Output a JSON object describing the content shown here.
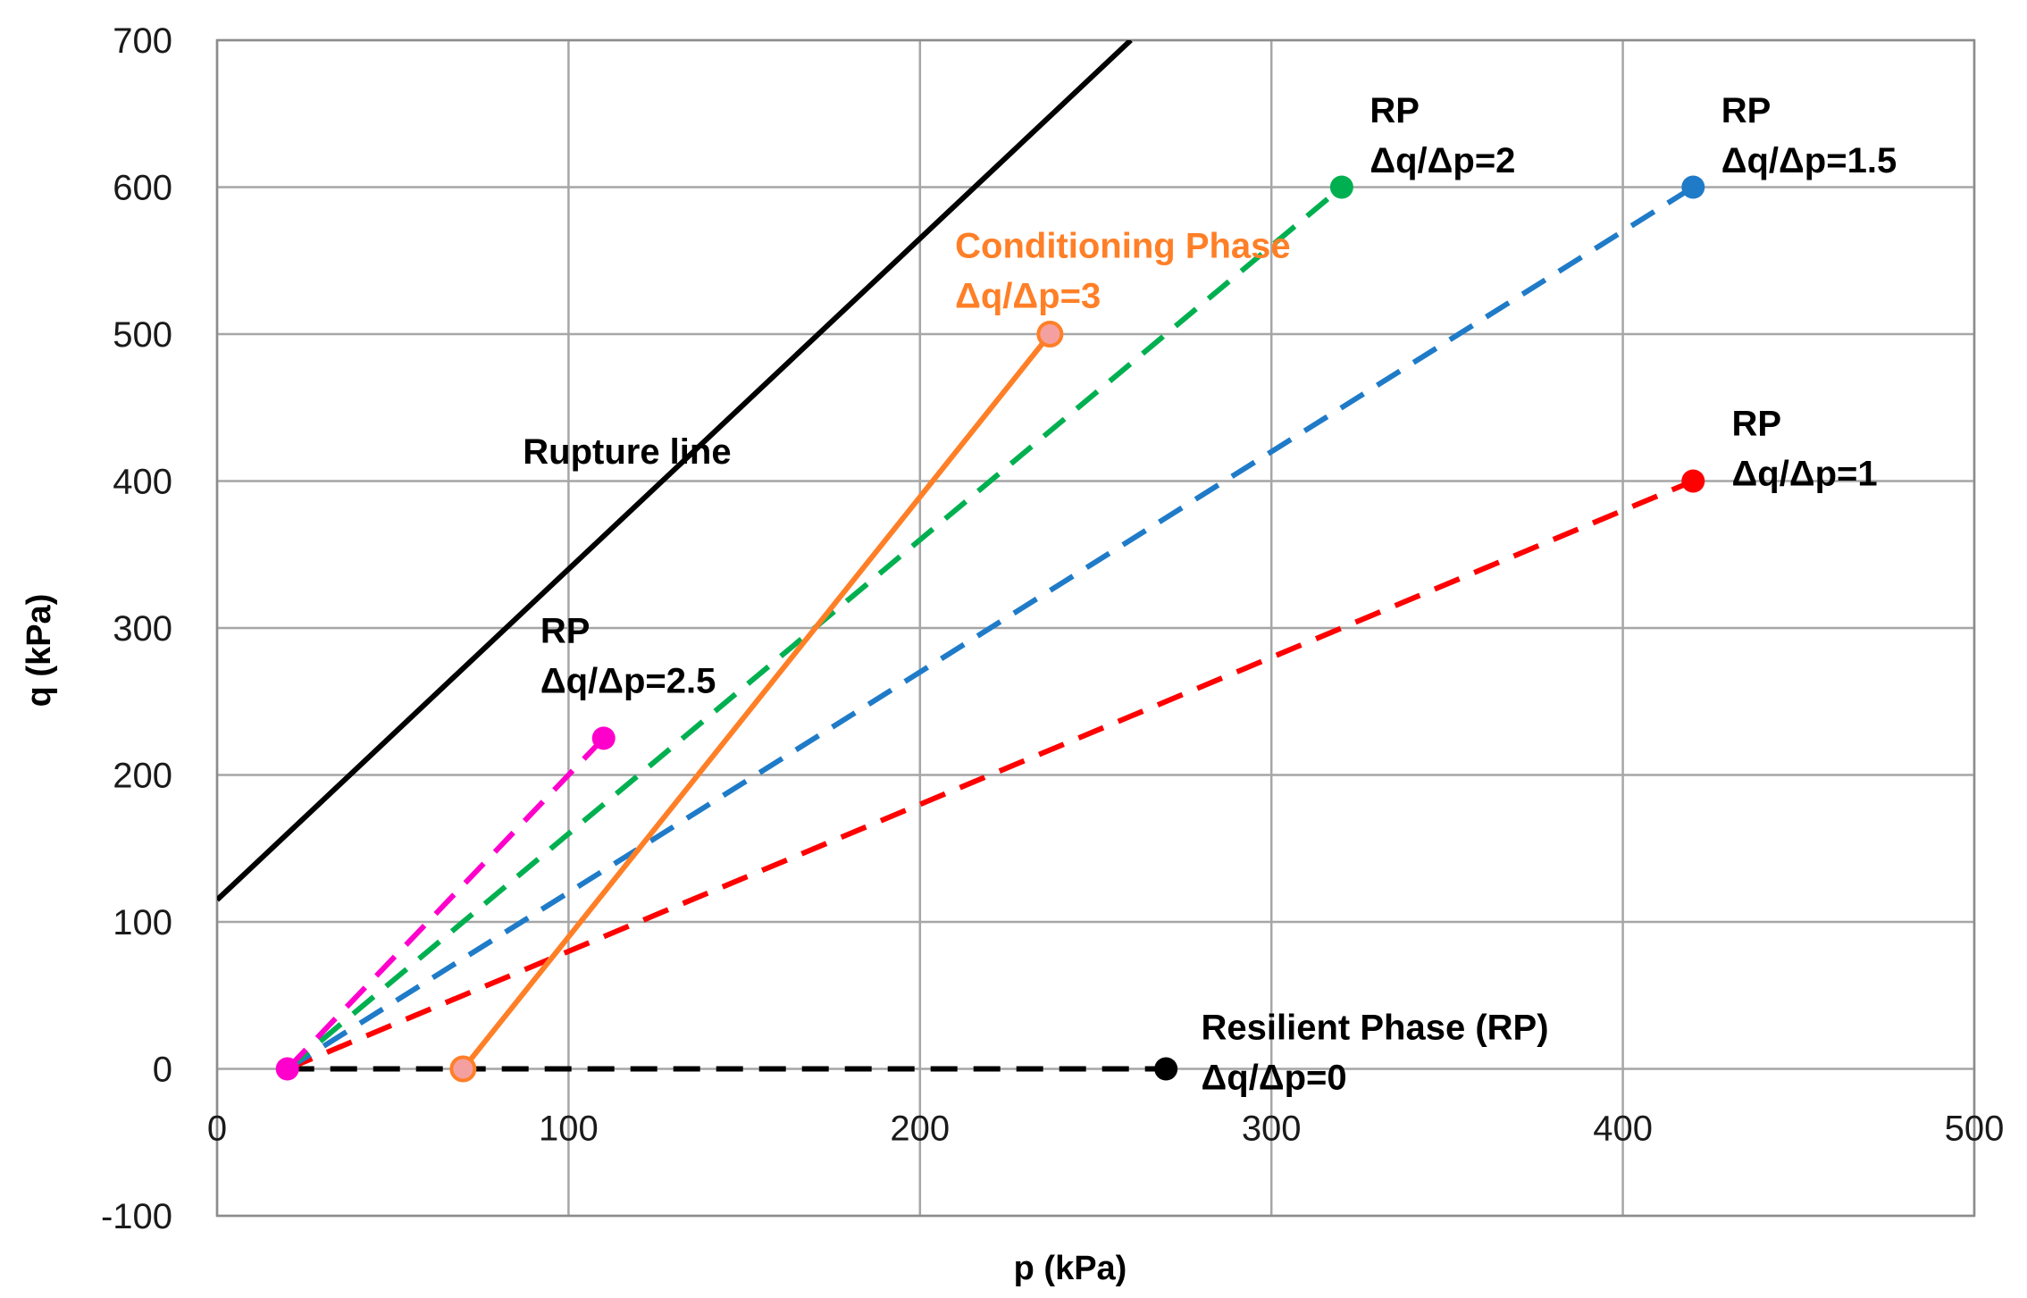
{
  "chart_data": {
    "type": "line",
    "title": "",
    "xlabel": "p (kPa)",
    "ylabel": "q (kPa)",
    "xlim": [
      0,
      500
    ],
    "ylim": [
      -100,
      700
    ],
    "grid": true,
    "x_ticks": [
      0,
      100,
      200,
      300,
      400,
      500
    ],
    "y_ticks": [
      -100,
      0,
      100,
      200,
      300,
      400,
      500,
      600,
      700
    ],
    "x_tick_labels": [
      "0",
      "100",
      "200",
      "300",
      "400",
      "500"
    ],
    "y_tick_labels": [
      "-100",
      "0",
      "100",
      "200",
      "300",
      "400",
      "500",
      "600",
      "700"
    ],
    "series": [
      {
        "name": "Rupture line",
        "color": "#000000",
        "style": "solid",
        "x": [
          0,
          260
        ],
        "y": [
          115,
          700
        ],
        "markers": false
      },
      {
        "name": "RP Δq/Δp=0",
        "color": "#000000",
        "style": "dashed",
        "x": [
          20,
          270
        ],
        "y": [
          0,
          0
        ],
        "markers": [
          false,
          true
        ]
      },
      {
        "name": "RP Δq/Δp=1",
        "color": "#ff0000",
        "style": "dashed",
        "x": [
          20,
          420
        ],
        "y": [
          0,
          400
        ],
        "markers": [
          false,
          true
        ]
      },
      {
        "name": "RP Δq/Δp=1.5",
        "color": "#1f7bc8",
        "style": "dashed",
        "x": [
          20,
          420
        ],
        "y": [
          0,
          600
        ],
        "markers": [
          false,
          true
        ]
      },
      {
        "name": "RP Δq/Δp=2",
        "color": "#00b050",
        "style": "dashed",
        "x": [
          20,
          320
        ],
        "y": [
          0,
          600
        ],
        "markers": [
          false,
          true
        ]
      },
      {
        "name": "RP Δq/Δp=2.5",
        "color": "#ff00cc",
        "style": "dashed",
        "x": [
          20,
          110
        ],
        "y": [
          0,
          225
        ],
        "markers": [
          true,
          true
        ]
      },
      {
        "name": "Conditioning Phase Δq/Δp=3",
        "color": "#ff7f27",
        "style": "solid",
        "x": [
          70,
          237
        ],
        "y": [
          0,
          500
        ],
        "markers": [
          true,
          true
        ],
        "marker_fill": "#f4a0a0"
      }
    ],
    "annotations": [
      {
        "lines": [
          "Rupture line"
        ],
        "color": "#000000",
        "x": 87,
        "y": 412
      },
      {
        "lines": [
          "RP",
          "Δq/Δp=2.5"
        ],
        "color": "#000000",
        "x": 92,
        "y": 290
      },
      {
        "lines": [
          "Conditioning Phase",
          "Δq/Δp=3"
        ],
        "color": "#ff7f27",
        "x": 210,
        "y": 552
      },
      {
        "lines": [
          "RP",
          "Δq/Δp=2"
        ],
        "color": "#000000",
        "x": 328,
        "y": 644
      },
      {
        "lines": [
          "RP",
          "Δq/Δp=1.5"
        ],
        "color": "#000000",
        "x": 428,
        "y": 644
      },
      {
        "lines": [
          "RP",
          "Δq/Δp=1"
        ],
        "color": "#000000",
        "x": 431,
        "y": 431
      },
      {
        "lines": [
          "Resilient Phase (RP)",
          "Δq/Δp=0"
        ],
        "color": "#000000",
        "x": 280,
        "y": 20
      }
    ]
  }
}
